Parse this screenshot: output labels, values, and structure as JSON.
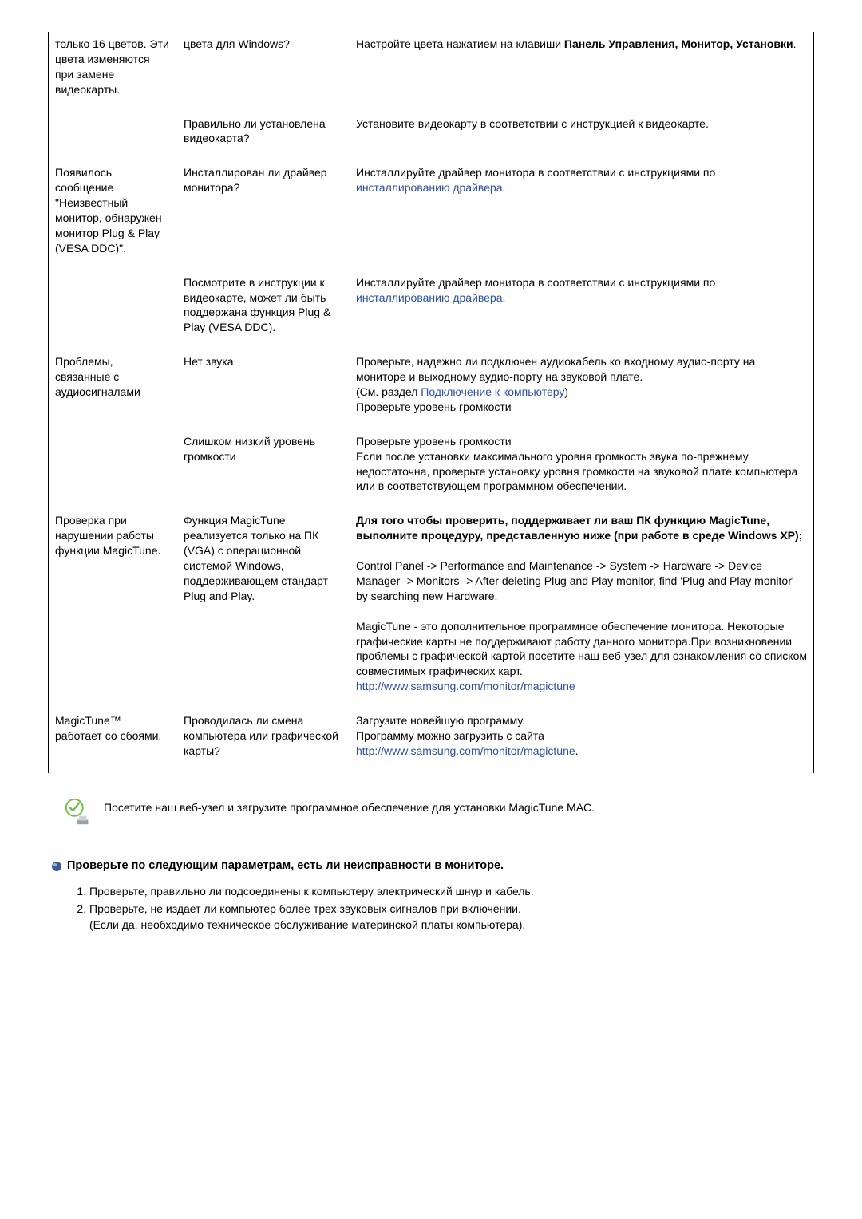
{
  "table": {
    "rows": [
      {
        "c1": "только 16 цветов. Эти цвета изменяются при замене видеокарты.",
        "c2": "цвета для Windows?",
        "c3": [
          {
            "t": "Настройте цвета нажатием на клавиши "
          },
          {
            "t": "Панель Управления, Монитор, Установки",
            "b": true
          },
          {
            "t": "."
          }
        ]
      },
      {
        "c1": "",
        "c2": "Правильно ли установлена видеокарта?",
        "c3": [
          {
            "t": "Установите видеокарту в соответствии с инструкцией к видеокарте."
          }
        ]
      },
      {
        "c1": "Появилось сообщение \"Неизвестный монитор, обнаружен монитор Plug & Play (VESA DDC)\".",
        "c2": "Инсталлирован ли драйвер монитора?",
        "c3": [
          {
            "t": "Инсталлируйте драйвер монитора в соответствии с инструкциями по "
          },
          {
            "t": "инсталлированию драйвера",
            "l": true
          },
          {
            "t": "."
          }
        ]
      },
      {
        "c1": "",
        "c2": "Посмотрите в инструкции к видеокарте, может ли быть поддержана функция Plug & Play (VESA DDC).",
        "c3": [
          {
            "t": "Инсталлируйте драйвер монитора в соответствии с инструкциями по "
          },
          {
            "t": "инсталлированию драйвера",
            "l": true
          },
          {
            "t": "."
          }
        ]
      },
      {
        "c1": "Проблемы, связанные с аудиосигналами",
        "c2": "Нет звука",
        "c3": [
          {
            "t": "Проверьте, надежно ли подключен аудиокабель ко входному аудио-порту на мониторе и выходному аудио-порту на звуковой плате."
          },
          {
            "br": true
          },
          {
            "t": "(См. раздел "
          },
          {
            "t": "Подключение к компьютеру",
            "l": true
          },
          {
            "t": ")"
          },
          {
            "br": true
          },
          {
            "t": "Проверьте уровень громкости"
          }
        ]
      },
      {
        "c1": "",
        "c2": "Слишком низкий уровень громкости",
        "c3": [
          {
            "t": "Проверьте уровень громкости"
          },
          {
            "br": true
          },
          {
            "t": "Если после установки максимального уровня громкость звука по-прежнему недостаточна, проверьте установку уровня громкости на звуковой плате компьютера или в соответствующем программном обеспечении."
          }
        ]
      },
      {
        "c1": "Проверка при нарушении работы функции MagicTune.",
        "c2": "Функция MagicTune реализуется только на ПК (VGA) с операционной системой Windows, поддерживающем стандарт Plug and Play.",
        "c3": [
          {
            "t": "Для того чтобы проверить, поддерживает ли ваш ПК функцию MagicTune, выполните процедуру, представленную ниже (при работе в среде Windows XP);",
            "b": true
          },
          {
            "br": true
          },
          {
            "br": true
          },
          {
            "t": "Control Panel -> Performance and Maintenance -> System -> Hardware -> Device Manager -> Monitors -> After deleting Plug and Play monitor, find 'Plug and Play monitor' by searching new Hardware."
          },
          {
            "br": true
          },
          {
            "br": true
          },
          {
            "t": "MagicTune - это дополнительное программное обеспечение монитора. Некоторые графические карты не поддерживают работу данного монитора.При возникновении проблемы с графической картой посетите наш веб-узел для ознакомления со списком совместимых графических карт."
          },
          {
            "br": true
          },
          {
            "t": "http://www.samsung.com/monitor/magictune",
            "l": true
          }
        ]
      },
      {
        "c1": "MagicTune™ работает со сбоями.",
        "c2": "Проводилась ли смена компьютера или графической карты?",
        "c3": [
          {
            "t": "Загрузите новейшую программу."
          },
          {
            "br": true
          },
          {
            "t": "Программу можно загрузить с сайта"
          },
          {
            "br": true
          },
          {
            "t": "http://www.samsung.com/monitor/magictune",
            "l": true
          },
          {
            "t": "."
          }
        ]
      }
    ]
  },
  "note": "Посетите наш веб-узел и загрузите программное обеспечение для установки MagicTune MAC.",
  "section_title": "Проверьте по следующим параметрам, есть ли неисправности в мониторе.",
  "checks": [
    "Проверьте, правильно ли подсоединены к компьютеру электрический шнур и кабель.",
    "Проверьте, не издает ли компьютер более трех звуковых сигналов при включении.\n(Если да, необходимо техническое обслуживание материнской платы компьютера)."
  ]
}
